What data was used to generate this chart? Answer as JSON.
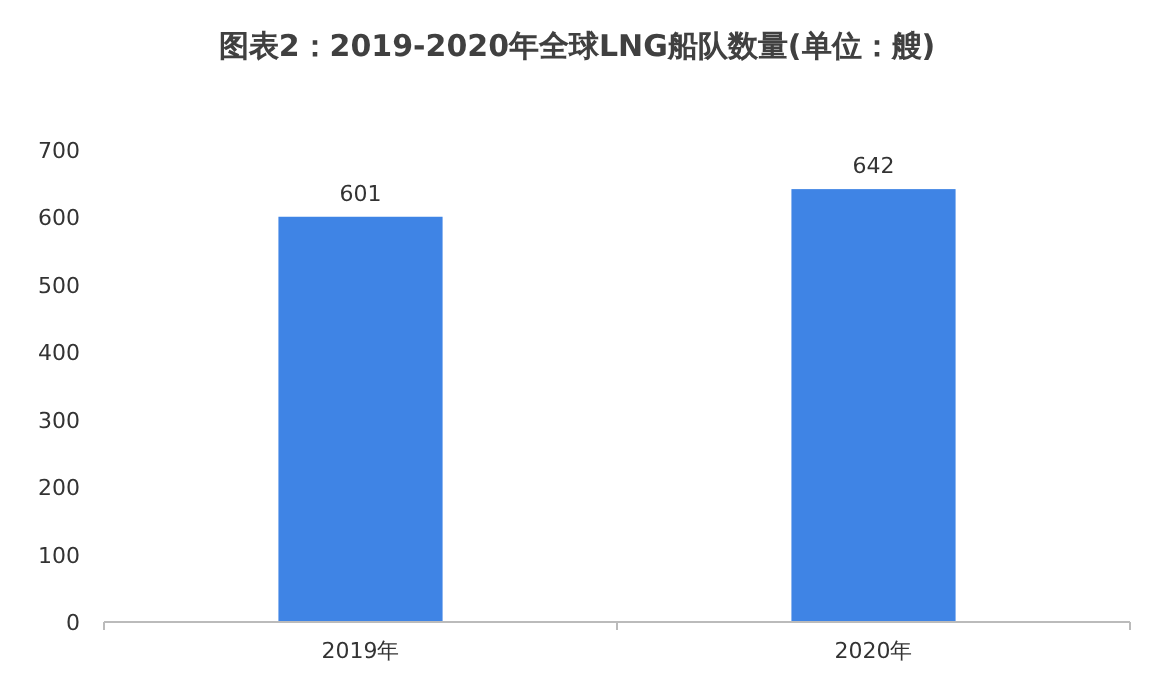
{
  "chart_data": {
    "type": "bar",
    "title": "图表2：2019-2020年全球LNG船队数量(单位：艘)",
    "categories": [
      "2019年",
      "2020年"
    ],
    "values": [
      601,
      642
    ],
    "color": "#3f84e5",
    "ylim": [
      0,
      700
    ],
    "yticks": [
      0,
      100,
      200,
      300,
      400,
      500,
      600,
      700
    ],
    "grid": false,
    "data_labels": true
  }
}
